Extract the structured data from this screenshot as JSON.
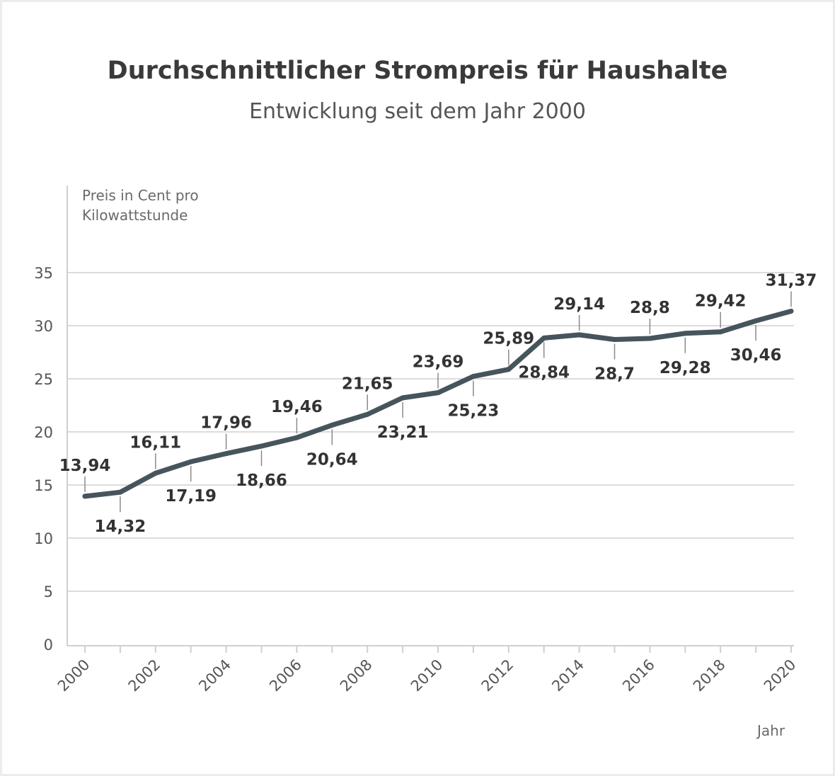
{
  "chart_data": {
    "type": "line",
    "title": "Durchschnittlicher Strompreis für Haushalte",
    "subtitle": "Entwicklung seit dem Jahr 2000",
    "ylabel": "Preis in Cent pro Kilowattstunde",
    "xlabel": "Jahr",
    "x": [
      2000,
      2001,
      2002,
      2003,
      2004,
      2005,
      2006,
      2007,
      2008,
      2009,
      2010,
      2011,
      2012,
      2013,
      2014,
      2015,
      2016,
      2017,
      2018,
      2019,
      2020
    ],
    "series": [
      {
        "values": [
          13.94,
          14.32,
          16.11,
          17.19,
          17.96,
          18.66,
          19.46,
          20.64,
          21.65,
          23.21,
          23.69,
          25.23,
          25.89,
          28.84,
          29.14,
          28.7,
          28.8,
          29.28,
          29.42,
          30.46,
          31.37
        ],
        "labels": [
          "13,94",
          "14,32",
          "16,11",
          "17,19",
          "17,96",
          "18,66",
          "19,46",
          "20,64",
          "21,65",
          "23,21",
          "23,69",
          "25,23",
          "25,89",
          "28,84",
          "29,14",
          "28,7",
          "28,8",
          "29,28",
          "29,42",
          "30,46",
          "31,37"
        ],
        "label_position": [
          "above",
          "below",
          "above",
          "below",
          "above",
          "below",
          "above",
          "below",
          "above",
          "below",
          "above",
          "below",
          "above",
          "below",
          "above",
          "below",
          "above",
          "below",
          "above",
          "below",
          "above"
        ]
      }
    ],
    "x_tick_labels": [
      "2000",
      "2002",
      "2004",
      "2006",
      "2008",
      "2010",
      "2012",
      "2014",
      "2016",
      "2018",
      "2020"
    ],
    "y_ticks": [
      0,
      5,
      10,
      15,
      20,
      25,
      30,
      35
    ],
    "ylim": [
      0,
      35
    ],
    "xlim": [
      2000,
      2020
    ],
    "grid": true,
    "legend": "none",
    "colors": {
      "line": "#46555c",
      "grid": "#dcdcdc",
      "axis": "#cfcfcf",
      "label_text": "#333333",
      "tick_text": "#555555"
    }
  }
}
